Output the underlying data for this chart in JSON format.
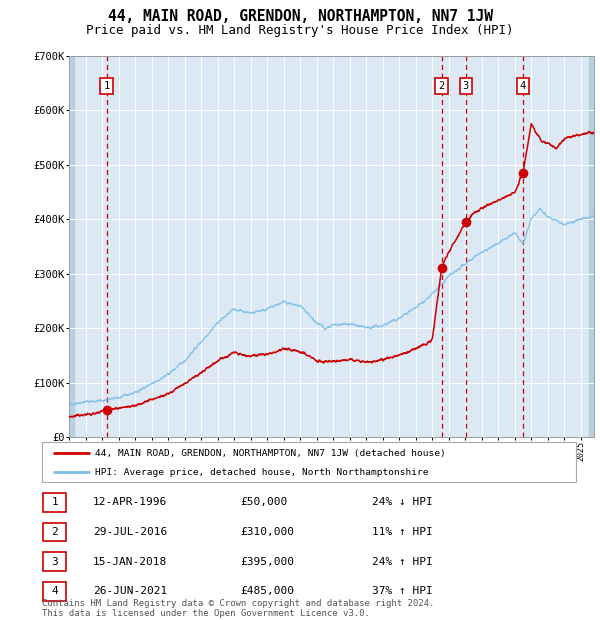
{
  "title": "44, MAIN ROAD, GRENDON, NORTHAMPTON, NN7 1JW",
  "subtitle": "Price paid vs. HM Land Registry's House Price Index (HPI)",
  "title_fontsize": 10.5,
  "subtitle_fontsize": 9,
  "plot_bg_color": "#dce9f5",
  "ylim": [
    0,
    700000
  ],
  "yticks": [
    0,
    100000,
    200000,
    300000,
    400000,
    500000,
    600000,
    700000
  ],
  "ytick_labels": [
    "£0",
    "£100K",
    "£200K",
    "£300K",
    "£400K",
    "£500K",
    "£600K",
    "£700K"
  ],
  "xmin": 1994.0,
  "xmax": 2025.8,
  "hpi_color": "#7bbfe8",
  "price_color": "#cc0000",
  "vline_color": "#cc0000",
  "legend_house_label": "44, MAIN ROAD, GRENDON, NORTHAMPTON, NN7 1JW (detached house)",
  "legend_hpi_label": "HPI: Average price, detached house, North Northamptonshire",
  "sales": [
    {
      "num": 1,
      "year": 1996.28,
      "price": 50000,
      "date": "12-APR-1996",
      "amount": "£50,000",
      "pct": "24% ↓ HPI"
    },
    {
      "num": 2,
      "year": 2016.57,
      "price": 310000,
      "date": "29-JUL-2016",
      "amount": "£310,000",
      "pct": "11% ↑ HPI"
    },
    {
      "num": 3,
      "year": 2018.04,
      "price": 395000,
      "date": "15-JAN-2018",
      "amount": "£395,000",
      "pct": "24% ↑ HPI"
    },
    {
      "num": 4,
      "year": 2021.49,
      "price": 485000,
      "date": "26-JUN-2021",
      "amount": "£485,000",
      "pct": "37% ↑ HPI"
    }
  ],
  "footnote": "Contains HM Land Registry data © Crown copyright and database right 2024.\nThis data is licensed under the Open Government Licence v3.0.",
  "footnote_fontsize": 6.5,
  "grid_color": "#ffffff",
  "hpi_keypoints": [
    [
      1994.0,
      60000
    ],
    [
      1995.0,
      65000
    ],
    [
      1996.0,
      67000
    ],
    [
      1997.0,
      72000
    ],
    [
      1998.0,
      82000
    ],
    [
      1999.0,
      97000
    ],
    [
      2000.0,
      115000
    ],
    [
      2001.0,
      140000
    ],
    [
      2002.0,
      175000
    ],
    [
      2003.0,
      210000
    ],
    [
      2004.0,
      235000
    ],
    [
      2005.0,
      228000
    ],
    [
      2006.0,
      235000
    ],
    [
      2007.0,
      248000
    ],
    [
      2008.0,
      240000
    ],
    [
      2009.0,
      210000
    ],
    [
      2009.5,
      200000
    ],
    [
      2010.0,
      205000
    ],
    [
      2011.0,
      208000
    ],
    [
      2012.0,
      200000
    ],
    [
      2013.0,
      205000
    ],
    [
      2014.0,
      218000
    ],
    [
      2015.0,
      238000
    ],
    [
      2016.0,
      262000
    ],
    [
      2016.57,
      280000
    ],
    [
      2017.0,
      295000
    ],
    [
      2018.04,
      318000
    ],
    [
      2018.5,
      330000
    ],
    [
      2019.0,
      340000
    ],
    [
      2020.0,
      355000
    ],
    [
      2021.0,
      375000
    ],
    [
      2021.49,
      354000
    ],
    [
      2022.0,
      400000
    ],
    [
      2022.5,
      420000
    ],
    [
      2023.0,
      405000
    ],
    [
      2024.0,
      390000
    ],
    [
      2025.0,
      400000
    ],
    [
      2025.8,
      405000
    ]
  ],
  "house_keypoints": [
    [
      1994.0,
      38000
    ],
    [
      1995.5,
      43000
    ],
    [
      1996.28,
      50000
    ],
    [
      1997.0,
      53000
    ],
    [
      1998.0,
      58000
    ],
    [
      1999.0,
      68000
    ],
    [
      2000.0,
      80000
    ],
    [
      2001.0,
      98000
    ],
    [
      2002.0,
      118000
    ],
    [
      2003.0,
      140000
    ],
    [
      2004.0,
      155000
    ],
    [
      2005.0,
      148000
    ],
    [
      2006.0,
      152000
    ],
    [
      2007.0,
      162000
    ],
    [
      2008.0,
      158000
    ],
    [
      2009.0,
      140000
    ],
    [
      2009.5,
      138000
    ],
    [
      2010.0,
      140000
    ],
    [
      2011.0,
      142000
    ],
    [
      2012.0,
      138000
    ],
    [
      2013.0,
      142000
    ],
    [
      2014.0,
      150000
    ],
    [
      2015.0,
      162000
    ],
    [
      2016.0,
      178000
    ],
    [
      2016.57,
      310000
    ],
    [
      2017.0,
      340000
    ],
    [
      2018.04,
      395000
    ],
    [
      2018.5,
      410000
    ],
    [
      2019.0,
      420000
    ],
    [
      2020.0,
      435000
    ],
    [
      2021.0,
      448000
    ],
    [
      2021.49,
      485000
    ],
    [
      2022.0,
      575000
    ],
    [
      2022.3,
      560000
    ],
    [
      2022.6,
      545000
    ],
    [
      2023.0,
      540000
    ],
    [
      2023.5,
      530000
    ],
    [
      2024.0,
      548000
    ],
    [
      2024.5,
      552000
    ],
    [
      2025.0,
      555000
    ],
    [
      2025.8,
      560000
    ]
  ]
}
